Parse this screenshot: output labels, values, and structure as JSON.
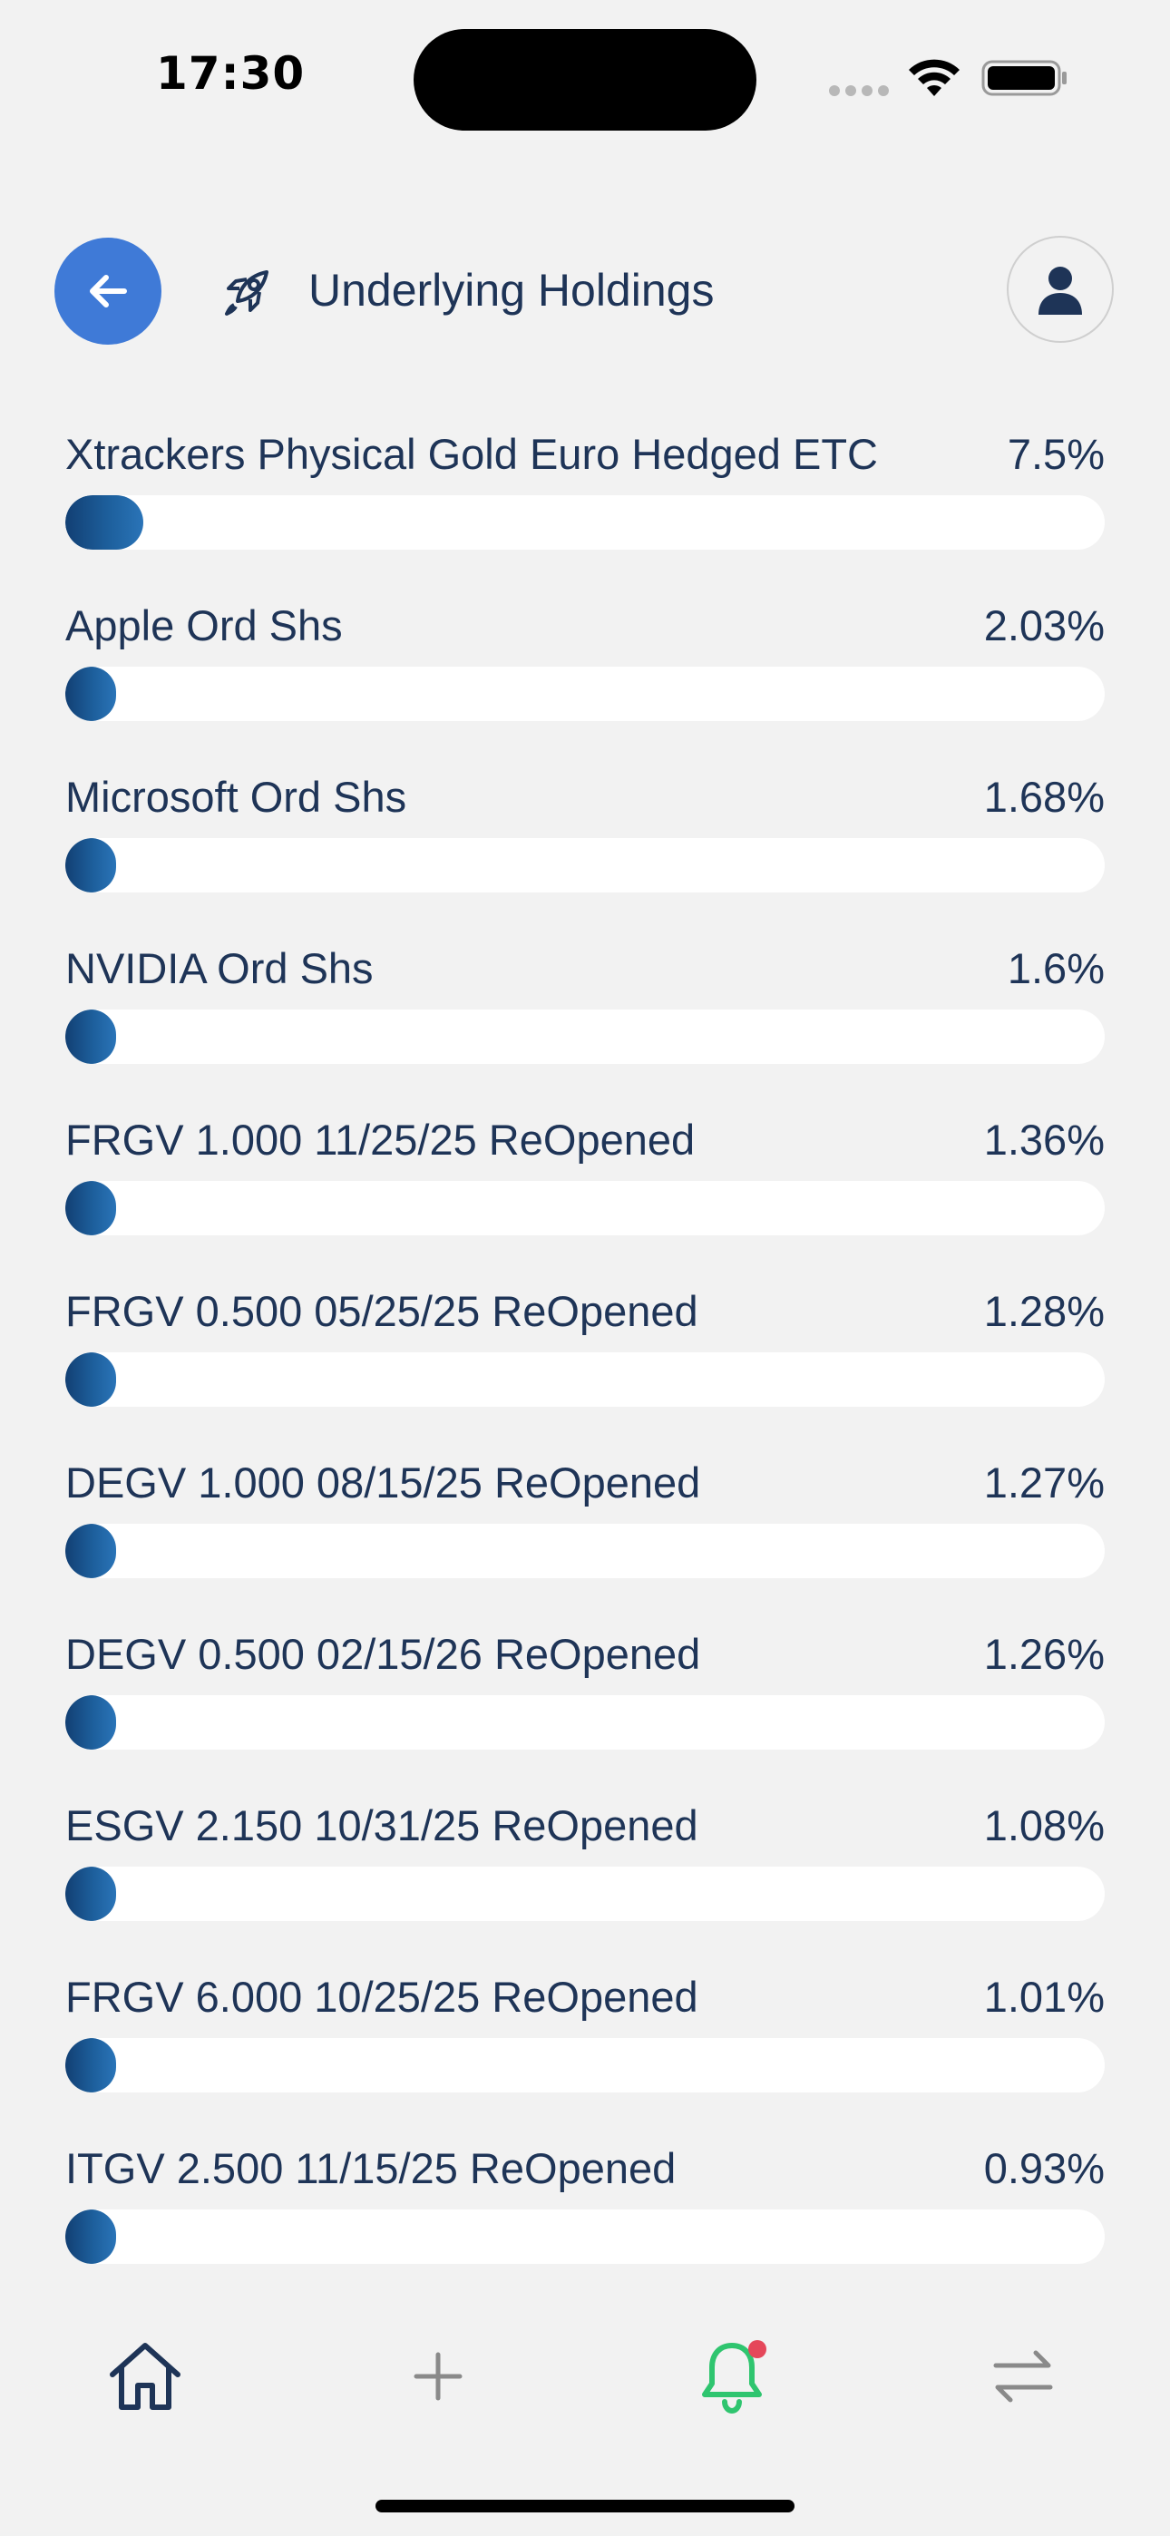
{
  "status_bar": {
    "time": "17:30"
  },
  "header": {
    "title": "Underlying Holdings",
    "back_icon": "arrow-left-icon",
    "title_icon": "rocket-icon",
    "profile_icon": "user-icon"
  },
  "colors": {
    "accent": "#3f7ad7",
    "text": "#1e3457",
    "bar_track": "#ffffff",
    "bar_fill_start": "#123f73",
    "bar_fill_end": "#2a74b8",
    "notification_active": "#2fc56f",
    "notification_dot": "#e5475a",
    "background": "#f2f2f2"
  },
  "holdings": [
    {
      "name": "Xtrackers Physical Gold Euro Hedged ETC",
      "weight_label": "7.5%",
      "weight": 7.5
    },
    {
      "name": "Apple Ord Shs",
      "weight_label": "2.03%",
      "weight": 2.03
    },
    {
      "name": "Microsoft Ord Shs",
      "weight_label": "1.68%",
      "weight": 1.68
    },
    {
      "name": "NVIDIA Ord Shs",
      "weight_label": "1.6%",
      "weight": 1.6
    },
    {
      "name": "FRGV 1.000 11/25/25 ReOpened",
      "weight_label": "1.36%",
      "weight": 1.36
    },
    {
      "name": "FRGV 0.500 05/25/25 ReOpened",
      "weight_label": "1.28%",
      "weight": 1.28
    },
    {
      "name": "DEGV 1.000 08/15/25 ReOpened",
      "weight_label": "1.27%",
      "weight": 1.27
    },
    {
      "name": "DEGV 0.500 02/15/26 ReOpened",
      "weight_label": "1.26%",
      "weight": 1.26
    },
    {
      "name": "ESGV 2.150 10/31/25 ReOpened",
      "weight_label": "1.08%",
      "weight": 1.08
    },
    {
      "name": "FRGV 6.000 10/25/25 ReOpened",
      "weight_label": "1.01%",
      "weight": 1.01
    },
    {
      "name": "ITGV 2.500 11/15/25 ReOpened",
      "weight_label": "0.93%",
      "weight": 0.93
    }
  ],
  "tab_bar": {
    "tabs": [
      {
        "icon": "home-icon"
      },
      {
        "icon": "plus-icon"
      },
      {
        "icon": "bell-icon",
        "has_notification": true
      },
      {
        "icon": "transfer-icon"
      }
    ]
  }
}
